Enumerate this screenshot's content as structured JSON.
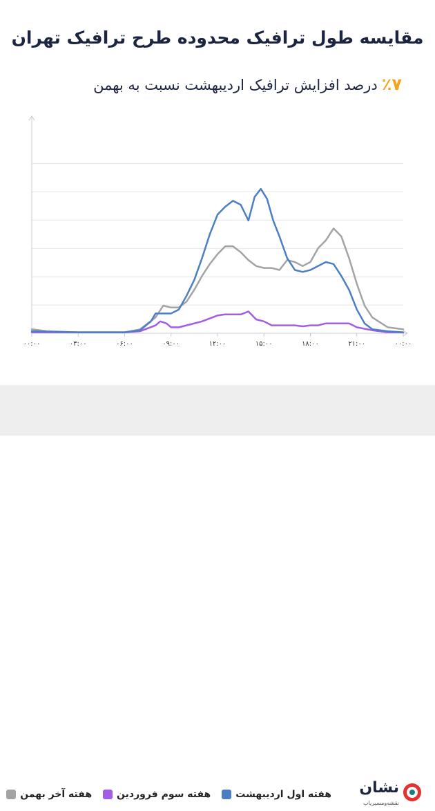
{
  "header": {
    "title": "مقایسه طول ترافیک محدوده طرح ترافیک تهران",
    "subtitle_pct": "٪۷",
    "subtitle_text": "درصد افزایش ترافیک اردیبهشت نسبت به بهمن"
  },
  "logo": {
    "name": "نشان",
    "tagline": "نقشه‌ومسیریاب"
  },
  "colors": {
    "gray": "#a3a3a3",
    "purple": "#a35ce6",
    "blue": "#4c7ec4",
    "accent": "#f3a41b"
  },
  "chart_data": {
    "type": "line",
    "title": "مقایسه طول ترافیک محدوده طرح ترافیک تهران",
    "xlabel": "",
    "ylabel": "",
    "x_range": [
      0,
      24
    ],
    "y_range": [
      0,
      100
    ],
    "grid": true,
    "legend_position": "bottom",
    "x_ticks": [
      {
        "x": 0,
        "label": "۰۰:۰۰"
      },
      {
        "x": 3,
        "label": "۰۳:۰۰"
      },
      {
        "x": 6,
        "label": "۰۶:۰۰"
      },
      {
        "x": 9,
        "label": "۰۹:۰۰"
      },
      {
        "x": 12,
        "label": "۱۲:۰۰"
      },
      {
        "x": 15,
        "label": "۱۵:۰۰"
      },
      {
        "x": 18,
        "label": "۱۸:۰۰"
      },
      {
        "x": 21,
        "label": "۲۱:۰۰"
      },
      {
        "x": 24,
        "label": "۰۰:۰۰"
      }
    ],
    "series": [
      {
        "name": "هفته آخر بهمن",
        "color": "#a3a3a3",
        "points": [
          [
            0,
            2
          ],
          [
            1,
            1
          ],
          [
            3,
            0.5
          ],
          [
            6,
            0.5
          ],
          [
            7,
            2
          ],
          [
            8,
            8
          ],
          [
            8.5,
            14
          ],
          [
            9,
            13
          ],
          [
            9.5,
            13
          ],
          [
            10,
            16
          ],
          [
            10.5,
            22
          ],
          [
            11,
            29
          ],
          [
            11.5,
            35
          ],
          [
            12,
            40
          ],
          [
            12.5,
            44
          ],
          [
            13,
            44
          ],
          [
            13.5,
            41
          ],
          [
            14,
            37
          ],
          [
            14.5,
            34
          ],
          [
            15,
            33
          ],
          [
            15.5,
            33
          ],
          [
            16,
            32
          ],
          [
            16.5,
            37
          ],
          [
            17,
            36
          ],
          [
            17.5,
            34
          ],
          [
            18,
            36
          ],
          [
            18.5,
            43
          ],
          [
            19,
            47
          ],
          [
            19.5,
            53
          ],
          [
            20,
            49
          ],
          [
            20.5,
            38
          ],
          [
            21,
            25
          ],
          [
            21.5,
            14
          ],
          [
            22,
            8
          ],
          [
            23,
            3
          ],
          [
            24,
            2
          ]
        ]
      },
      {
        "name": "هفته سوم فروردین",
        "color": "#a35ce6",
        "points": [
          [
            0,
            0.5
          ],
          [
            6,
            0.5
          ],
          [
            7,
            1
          ],
          [
            8,
            4
          ],
          [
            8.3,
            6
          ],
          [
            8.7,
            5
          ],
          [
            9,
            3
          ],
          [
            9.5,
            3
          ],
          [
            10,
            4
          ],
          [
            11,
            6
          ],
          [
            12,
            9
          ],
          [
            12.5,
            9.5
          ],
          [
            13,
            9.5
          ],
          [
            13.5,
            9.5
          ],
          [
            14,
            11
          ],
          [
            14.5,
            7
          ],
          [
            15,
            6
          ],
          [
            15.5,
            4
          ],
          [
            16,
            4
          ],
          [
            17,
            4
          ],
          [
            17.5,
            3.5
          ],
          [
            18,
            4
          ],
          [
            18.5,
            4
          ],
          [
            19,
            5
          ],
          [
            19.5,
            5
          ],
          [
            20,
            5
          ],
          [
            20.5,
            5
          ],
          [
            21,
            3
          ],
          [
            22,
            1.5
          ],
          [
            23,
            0.5
          ],
          [
            24,
            0.5
          ]
        ]
      },
      {
        "name": "هفته اول اردیبهشت",
        "color": "#4c7ec4",
        "points": [
          [
            0,
            1
          ],
          [
            3,
            0.5
          ],
          [
            6,
            0.5
          ],
          [
            7,
            1.5
          ],
          [
            7.7,
            6
          ],
          [
            8,
            10
          ],
          [
            8.5,
            10
          ],
          [
            9,
            10
          ],
          [
            9.5,
            12
          ],
          [
            10,
            19
          ],
          [
            10.5,
            27
          ],
          [
            11,
            38
          ],
          [
            11.5,
            50
          ],
          [
            12,
            60
          ],
          [
            12.5,
            64
          ],
          [
            13,
            67
          ],
          [
            13.5,
            65
          ],
          [
            14,
            57
          ],
          [
            14.4,
            69
          ],
          [
            14.8,
            73
          ],
          [
            15.2,
            68
          ],
          [
            15.6,
            57
          ],
          [
            16,
            49
          ],
          [
            16.5,
            38
          ],
          [
            17,
            32
          ],
          [
            17.5,
            31
          ],
          [
            18,
            32
          ],
          [
            18.5,
            34
          ],
          [
            19,
            36
          ],
          [
            19.5,
            35
          ],
          [
            20,
            29
          ],
          [
            20.5,
            22
          ],
          [
            21,
            12
          ],
          [
            21.5,
            5
          ],
          [
            22,
            2
          ],
          [
            23,
            1
          ],
          [
            24,
            0.5
          ]
        ]
      }
    ]
  }
}
